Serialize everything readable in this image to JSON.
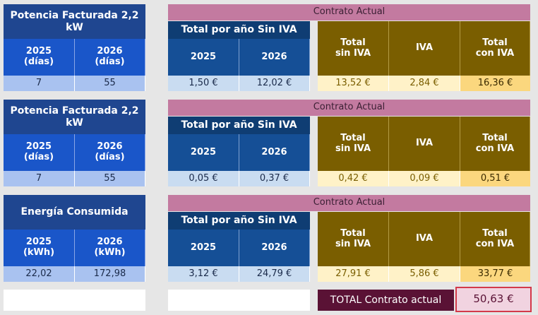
{
  "sections": [
    {
      "left_header": "Potencia Facturada 2,2 kW",
      "col1_header": "2025\n(días)",
      "col2_header": "2026\n(días)",
      "col1_value": "7",
      "col2_value": "55",
      "contract_title": "Contrato Actual",
      "year_title": "Total por año Sin IVA",
      "year1": "2025",
      "year2": "2026",
      "year1_value": "1,50 €",
      "year2_value": "12,02 €",
      "total_sin_iva_label": "Total\nsin IVA",
      "iva_label": "IVA",
      "total_con_iva_label": "Total\ncon IVA",
      "total_sin_iva": "13,52 €",
      "iva": "2,84 €",
      "total_con_iva": "16,36 €"
    },
    {
      "left_header": "Potencia Facturada 2,2 kW",
      "col1_header": "2025\n(días)",
      "col2_header": "2026\n(días)",
      "col1_value": "7",
      "col2_value": "55",
      "contract_title": "Contrato Actual",
      "year_title": "Total por año Sin IVA",
      "year1": "2025",
      "year2": "2026",
      "year1_value": "0,05 €",
      "year2_value": "0,37 €",
      "total_sin_iva_label": "Total\nsin IVA",
      "iva_label": "IVA",
      "total_con_iva_label": "Total\ncon IVA",
      "total_sin_iva": "0,42 €",
      "iva": "0,09 €",
      "total_con_iva": "0,51 €"
    },
    {
      "left_header": "Energía Consumida",
      "col1_header": "2025\n(kWh)",
      "col2_header": "2026\n(kWh)",
      "col1_value": "22,02",
      "col2_value": "172,98",
      "contract_title": "Contrato Actual",
      "year_title": "Total por año Sin IVA",
      "year1": "2025",
      "year2": "2026",
      "year1_value": "3,12 €",
      "year2_value": "24,79 €",
      "total_sin_iva_label": "Total\nsin IVA",
      "iva_label": "IVA",
      "total_con_iva_label": "Total\ncon IVA",
      "total_sin_iva": "27,91 €",
      "iva": "5,86 €",
      "total_con_iva": "33,77 €"
    }
  ],
  "footer": {
    "total_label": "TOTAL Contrato actual",
    "total_value": "50,63 €"
  }
}
